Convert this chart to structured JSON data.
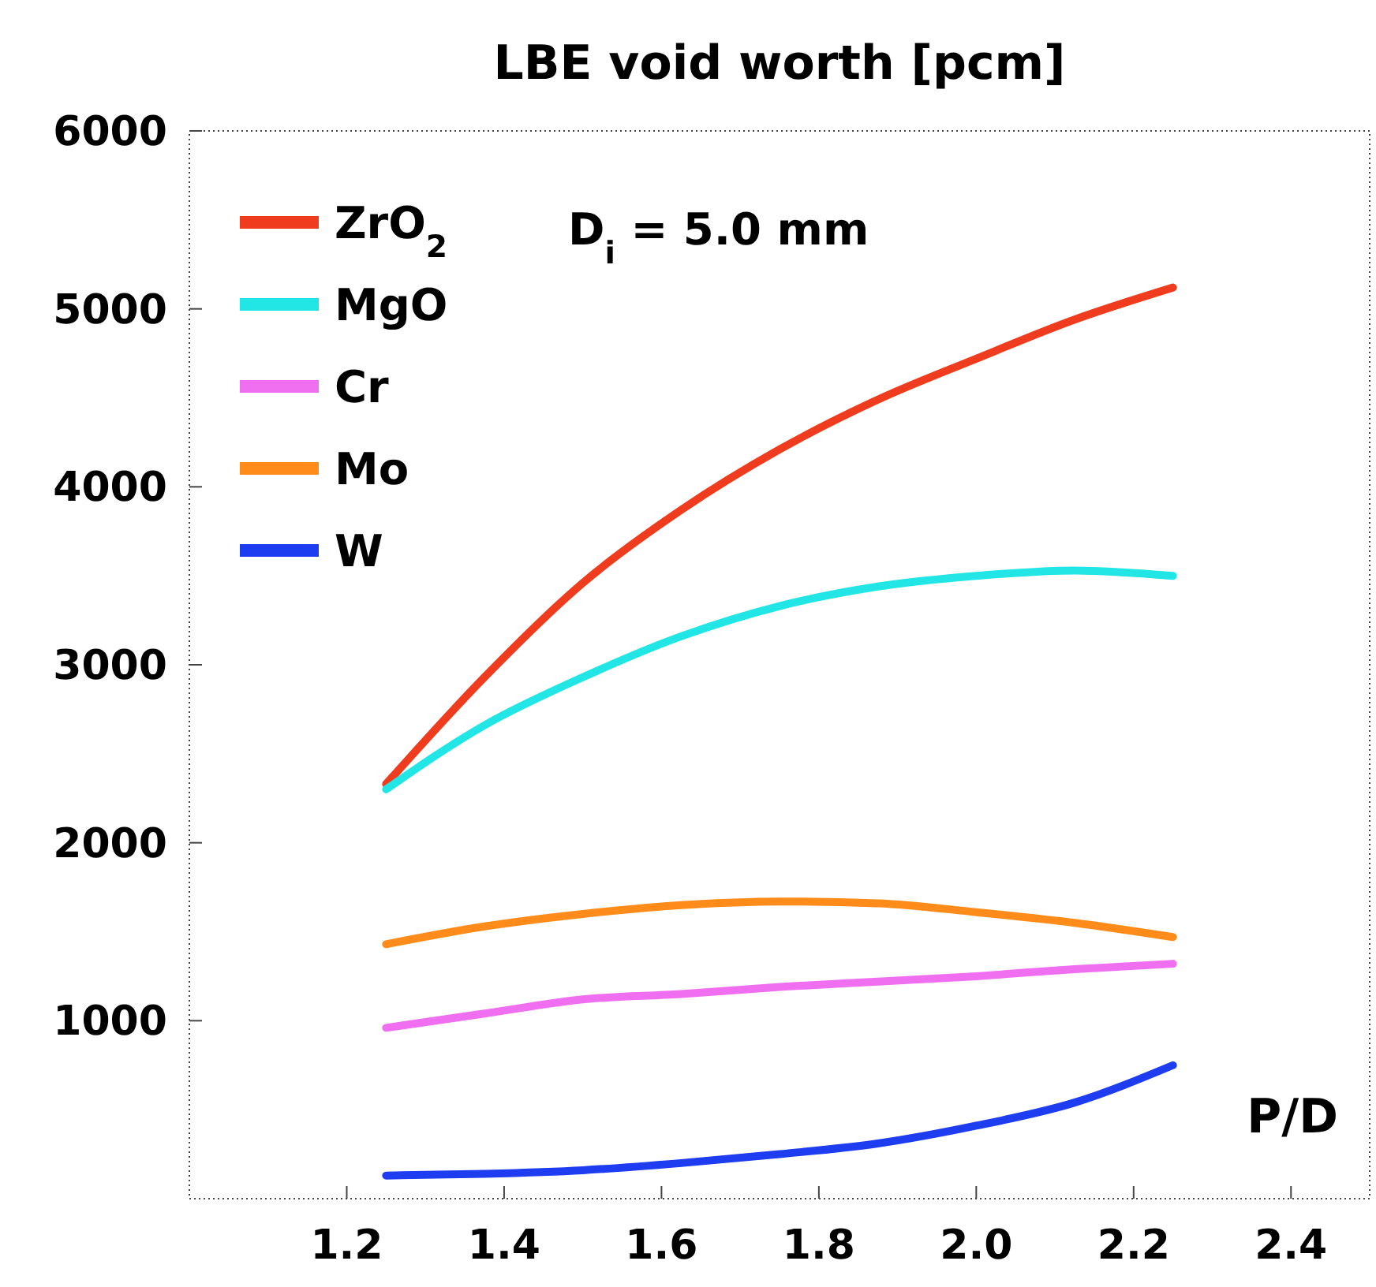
{
  "chart_data": {
    "type": "line",
    "title": "LBE void worth [pcm]",
    "xlabel": "P/D",
    "annotations": [
      "D$_{i}$ = 5.0 mm"
    ],
    "x": [
      1.25,
      1.375,
      1.5,
      1.625,
      1.75,
      1.875,
      2.0,
      2.125,
      2.25
    ],
    "series": [
      {
        "name": "ZrO$_{2}$",
        "color": "#f03c1e",
        "values": [
          2330,
          2930,
          3460,
          3870,
          4210,
          4490,
          4720,
          4940,
          5120
        ]
      },
      {
        "name": "MgO",
        "color": "#22e6e6",
        "values": [
          2300,
          2660,
          2930,
          3160,
          3330,
          3440,
          3500,
          3530,
          3500
        ]
      },
      {
        "name": "Cr",
        "color": "#f06ef0",
        "values": [
          960,
          1040,
          1120,
          1150,
          1190,
          1220,
          1250,
          1290,
          1320
        ]
      },
      {
        "name": "Mo",
        "color": "#ff8c1a",
        "values": [
          1430,
          1530,
          1600,
          1650,
          1670,
          1660,
          1610,
          1550,
          1470
        ]
      },
      {
        "name": "W",
        "color": "#1e3cf0",
        "values": [
          130,
          140,
          160,
          200,
          250,
          310,
          410,
          540,
          750
        ]
      }
    ],
    "xlim": [
      1.0,
      2.5
    ],
    "xticks": [
      1.2,
      1.4,
      1.6,
      1.8,
      {
        "value": 2.0,
        "label": "2.0"
      },
      2.2,
      2.4
    ],
    "ylim": [
      0,
      6000
    ],
    "yticks": [
      1000,
      2000,
      3000,
      4000,
      5000,
      6000
    ],
    "grid": false,
    "legend": "top left",
    "marker": "none",
    "line_style": "solid"
  }
}
